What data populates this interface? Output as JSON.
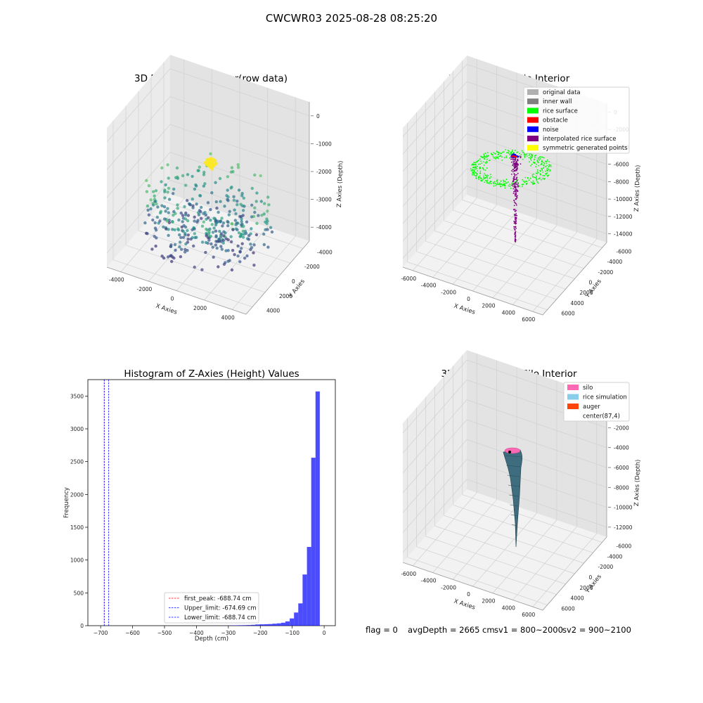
{
  "figure": {
    "suptitle": "CWCWR03 2025-08-28 08:25:20",
    "status": {
      "flag": "flag = 0",
      "avg_depth": "avgDepth = 2665 cm",
      "sv1": "sv1 = 800~2000",
      "sv2": "sv2 = 900~2100"
    }
  },
  "panels": {
    "raw": {
      "title": "3D Plot of Silo Interior(row data)",
      "xlabel": "X Axies",
      "ylabel": "Y Axies",
      "zlabel": "Z Axies (Depth)",
      "xticks": [
        "-4000",
        "-2000",
        "0",
        "2000",
        "4000"
      ],
      "yticks": [
        "4000",
        "2000",
        "0",
        "-2000",
        "-4000"
      ],
      "zticks": [
        "0",
        "-1000",
        "-2000",
        "-3000",
        "-4000"
      ],
      "colormap": "viridis"
    },
    "classify": {
      "title": "3D classify of Silo Interior",
      "xlabel": "X Axies",
      "ylabel": "Y Axies",
      "zlabel": "Z Axies (Depth)",
      "xticks": [
        "-6000",
        "-4000",
        "-2000",
        "0",
        "2000",
        "4000",
        "6000"
      ],
      "yticks": [
        "6000",
        "4000",
        "2000",
        "0",
        "-2000",
        "-4000",
        "-6000"
      ],
      "zticks": [
        "0",
        "-2000",
        "-4000",
        "-6000",
        "-8000",
        "-10000",
        "-12000",
        "-14000"
      ],
      "legend": [
        {
          "label": "original data",
          "color": "#b0b0b0"
        },
        {
          "label": "inner wall",
          "color": "#808080"
        },
        {
          "label": "rice surface",
          "color": "#00ff00"
        },
        {
          "label": "obstacle",
          "color": "#ff0000"
        },
        {
          "label": "noise",
          "color": "#0000ff"
        },
        {
          "label": "interpolated rice surface",
          "color": "#800080"
        },
        {
          "label": "symmetric generated points",
          "color": "#ffff00"
        }
      ]
    },
    "histogram": {
      "title": "Histogram of Z-Axies (Height) Values",
      "xlabel": "Depth (cm)",
      "ylabel": "Frequency",
      "legend": [
        {
          "label": "first_peak: -688.74 cm",
          "color": "#ff0000"
        },
        {
          "label": "Upper_limit: -674.69 cm",
          "color": "#0000ff"
        },
        {
          "label": "Lower_limit: -688.74 cm",
          "color": "#0000ff"
        }
      ]
    },
    "simulation": {
      "title": "3D simulation of Silo Interior",
      "xlabel": "X Axies",
      "ylabel": "Y Axies",
      "zlabel": "Z Axies (Depth)",
      "xticks": [
        "-6000",
        "-4000",
        "-2000",
        "0",
        "2000",
        "4000",
        "6000"
      ],
      "yticks": [
        "6000",
        "4000",
        "2000",
        "0",
        "-2000",
        "-4000",
        "-6000"
      ],
      "zticks": [
        "0",
        "-2000",
        "-4000",
        "-6000",
        "-8000",
        "-10000",
        "-12000"
      ],
      "legend": [
        {
          "label": "silo",
          "color": "#ff69b4"
        },
        {
          "label": "rice simulation",
          "color": "#87ceeb"
        },
        {
          "label": "auger",
          "color": "#ff4500"
        },
        {
          "label": "center(87,4)",
          "color": ""
        }
      ]
    }
  },
  "chart_data": [
    {
      "type": "scatter",
      "title": "3D Plot of Silo Interior(row data)",
      "xlabel": "X Axies",
      "ylabel": "Y Axies",
      "zlabel": "Z Axies (Depth)",
      "xlim": [
        -4500,
        4500
      ],
      "ylim": [
        -4500,
        4500
      ],
      "zlim": [
        -4500,
        200
      ],
      "grid": true,
      "clusters": [
        {
          "name": "",
          "x_range": [
            -4000,
            4000
          ],
          "y_range": [
            -4000,
            4000
          ],
          "z_range": [
            -4200,
            -2200
          ],
          "approx_points": 380
        },
        {
          "name": "",
          "x_range": [
            -500,
            500
          ],
          "y_range": [
            -500,
            500
          ],
          "z_range": [
            -1200,
            -600
          ],
          "approx_points": 60
        }
      ]
    },
    {
      "type": "scatter",
      "title": "3D classify of Silo Interior",
      "xlabel": "X Axies",
      "ylabel": "Y Axies",
      "zlabel": "Z Axies (Depth)",
      "xlim": [
        -7000,
        7000
      ],
      "ylim": [
        -7000,
        7000
      ],
      "zlim": [
        -14500,
        500
      ],
      "grid": true,
      "legend_position": "top-right",
      "series": [
        {
          "name": "rice surface",
          "color": "#00ff00",
          "z_range": [
            -4500,
            -2500
          ],
          "approx_points": 450
        },
        {
          "name": "interpolated rice surface",
          "color": "#800080",
          "z_range": [
            -14000,
            -500
          ],
          "approx_points": 260
        },
        {
          "name": "noise",
          "color": "#0000ff",
          "z_range": [
            -1000,
            -200
          ],
          "approx_points": 25
        },
        {
          "name": "obstacle",
          "color": "#ff0000",
          "z_range": [
            -800,
            -200
          ],
          "approx_points": 5
        }
      ]
    },
    {
      "type": "bar",
      "title": "Histogram of Z-Axies (Height) Values",
      "xlabel": "Depth (cm)",
      "ylabel": "Frequency",
      "xlim": [
        -740,
        35
      ],
      "ylim": [
        0,
        3750
      ],
      "xticks": [
        -700,
        -600,
        -500,
        -400,
        -300,
        -200,
        -100,
        0
      ],
      "yticks": [
        0,
        500,
        1000,
        1500,
        2000,
        2500,
        3000,
        3500
      ],
      "bin_width": 13.5,
      "bin_edges_start": -351,
      "values": [
        2,
        0,
        1,
        0,
        3,
        5,
        6,
        7,
        10,
        13,
        18,
        20,
        22,
        25,
        30,
        35,
        45,
        65,
        110,
        200,
        340,
        780,
        1200,
        2560,
        3570
      ],
      "legend_position": "lower-center",
      "vlines": [
        {
          "name": "first_peak",
          "x": -688.74,
          "color": "#ff0000",
          "style": "dashed"
        },
        {
          "name": "Upper_limit",
          "x": -674.69,
          "color": "#0000ff",
          "style": "dashed"
        },
        {
          "name": "Lower_limit",
          "x": -688.74,
          "color": "#0000ff",
          "style": "dashed"
        }
      ]
    },
    {
      "type": "area",
      "title": "3D simulation of Silo Interior",
      "xlabel": "X Axies",
      "ylabel": "Y Axies",
      "zlabel": "Z Axies (Depth)",
      "xlim": [
        -7000,
        7000
      ],
      "ylim": [
        -7000,
        7000
      ],
      "zlim": [
        -13000,
        500
      ],
      "grid": true,
      "legend_position": "top-right",
      "series": [
        {
          "name": "silo",
          "color": "#ff69b4",
          "z_top": 0
        },
        {
          "name": "rice simulation",
          "color": "#4a7a8c",
          "z_range": [
            -13000,
            0
          ]
        }
      ]
    }
  ]
}
